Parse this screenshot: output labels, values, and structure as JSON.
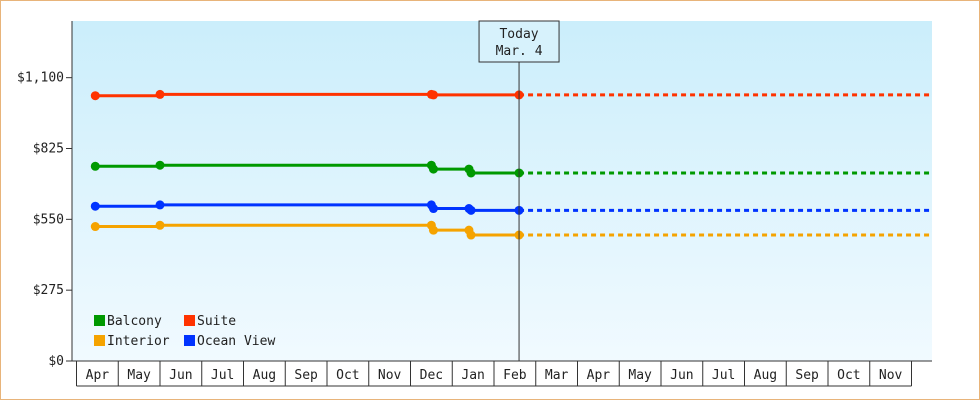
{
  "chart_data": {
    "type": "line",
    "title": "",
    "xlabel": "",
    "ylabel": "",
    "x_ticks": [
      "Apr",
      "May",
      "Jun",
      "Jul",
      "Aug",
      "Sep",
      "Oct",
      "Nov",
      "Dec",
      "Jan",
      "Feb",
      "Mar",
      "Apr",
      "May",
      "Jun",
      "Jul",
      "Aug",
      "Sep",
      "Oct",
      "Nov"
    ],
    "y_ticks": [
      "$0",
      "$275",
      "$550",
      "$825",
      "$1,100"
    ],
    "ylim": [
      0,
      1320
    ],
    "grid": false,
    "legend_position": "bottom-left",
    "today_marker": {
      "line1": "Today",
      "line2": "Mar. 4",
      "x": 10.1
    },
    "colors": {
      "plot_bg_top": "#cbeefb",
      "plot_bg_bottom": "#f1faff",
      "border": "#e8b47a"
    },
    "series": [
      {
        "name": "Suite",
        "color": "#ff3300",
        "points": [
          [
            -0.05,
            1030
          ],
          [
            1.5,
            1035
          ],
          [
            8.0,
            1035
          ],
          [
            8.05,
            1033
          ],
          [
            10.1,
            1033
          ]
        ],
        "projection": [
          [
            10.1,
            1033
          ],
          [
            20.4,
            1033
          ]
        ]
      },
      {
        "name": "Balcony",
        "color": "#009900",
        "points": [
          [
            -0.05,
            756
          ],
          [
            1.5,
            760
          ],
          [
            8.0,
            760
          ],
          [
            8.05,
            745
          ],
          [
            8.9,
            745
          ],
          [
            8.95,
            730
          ],
          [
            10.1,
            730
          ]
        ],
        "projection": [
          [
            10.1,
            730
          ],
          [
            20.4,
            730
          ]
        ]
      },
      {
        "name": "Ocean View",
        "color": "#0033ff",
        "points": [
          [
            -0.05,
            601
          ],
          [
            1.5,
            606
          ],
          [
            8.0,
            606
          ],
          [
            8.05,
            592
          ],
          [
            8.9,
            592
          ],
          [
            8.95,
            585
          ],
          [
            10.1,
            585
          ]
        ],
        "projection": [
          [
            10.1,
            585
          ],
          [
            20.4,
            585
          ]
        ]
      },
      {
        "name": "Interior",
        "color": "#f5a300",
        "points": [
          [
            -0.05,
            522
          ],
          [
            1.5,
            527
          ],
          [
            8.0,
            527
          ],
          [
            8.05,
            508
          ],
          [
            8.9,
            508
          ],
          [
            8.95,
            489
          ],
          [
            10.1,
            489
          ]
        ],
        "projection": [
          [
            10.1,
            489
          ],
          [
            20.4,
            489
          ]
        ]
      }
    ],
    "legend_order": [
      "Balcony",
      "Suite",
      "Interior",
      "Ocean View"
    ]
  }
}
